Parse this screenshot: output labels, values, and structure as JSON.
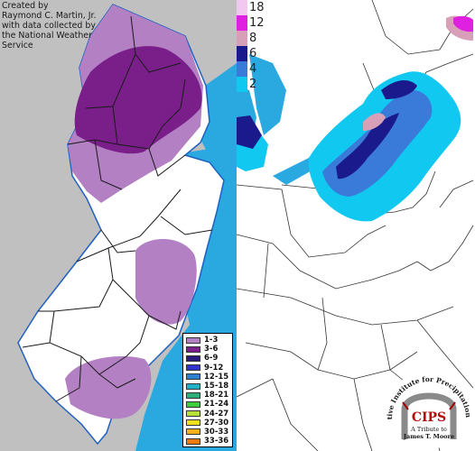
{
  "credit": {
    "lines": [
      "Created by",
      "Raymond C. Martin, Jr.",
      "with data collected by",
      "the National Weather",
      "Service"
    ]
  },
  "nj_legend": [
    {
      "label": "1-3",
      "color": "#b380c4"
    },
    {
      "label": "3-6",
      "color": "#7a1f8a"
    },
    {
      "label": "6-9",
      "color": "#2a1a7a"
    },
    {
      "label": "9-12",
      "color": "#3333cc"
    },
    {
      "label": "12-15",
      "color": "#2f7fd0"
    },
    {
      "label": "15-18",
      "color": "#1fb0c8"
    },
    {
      "label": "18-21",
      "color": "#2fb07a"
    },
    {
      "label": "21-24",
      "color": "#3fcc3f"
    },
    {
      "label": "24-27",
      "color": "#b8e03a"
    },
    {
      "label": "27-30",
      "color": "#f0e020"
    },
    {
      "label": "30-33",
      "color": "#f5b020"
    },
    {
      "label": "33-36",
      "color": "#f07a10"
    }
  ],
  "snow_scale": [
    {
      "label": "18",
      "color": "#f0c8f0"
    },
    {
      "label": "12",
      "color": "#e020e0"
    },
    {
      "label": "8",
      "color": "#d8a0b8"
    },
    {
      "label": "6",
      "color": "#1a1a8c"
    },
    {
      "label": "4",
      "color": "#3a7ad8"
    },
    {
      "label": "2",
      "color": "#10c8f0"
    }
  ],
  "cips": {
    "ring_text": "Cooperative Institute for Precipitation Systems",
    "logo": "CIPS",
    "tribute": [
      "A Tribute to",
      "James T. Moore"
    ]
  }
}
